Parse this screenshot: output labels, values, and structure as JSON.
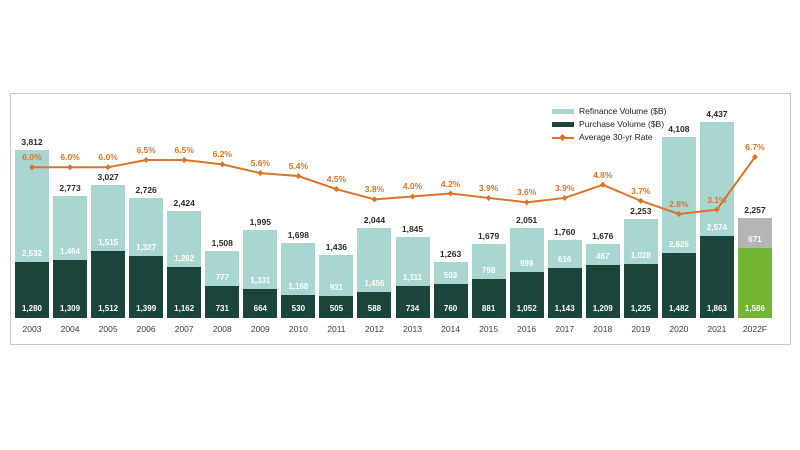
{
  "colors": {
    "refinance": "#a9d6d1",
    "purchase": "#1b453c",
    "rate_line": "#dd7327",
    "forecast_refinance": "#b5b5b5",
    "forecast_purchase": "#72b434",
    "total_label": "#2a2a2a",
    "year_label": "#3c3c3c",
    "box_border": "#c9c9c9"
  },
  "legend": {
    "items": [
      {
        "label": "Refinance Volume ($B)",
        "swatch": "refinance"
      },
      {
        "label": "Purchase Volume ($B)",
        "swatch": "purchase"
      },
      {
        "label": "Average 30-yr Rate",
        "swatch": "rate_line"
      }
    ]
  },
  "chart_data": {
    "type": "bar",
    "subtype": "stacked-bars-with-rate-line",
    "title": "",
    "xlabel": "",
    "ylabel": "",
    "grid": false,
    "legend_position": "top-right",
    "categories": [
      "2003",
      "2004",
      "2005",
      "2006",
      "2007",
      "2008",
      "2009",
      "2010",
      "2011",
      "2012",
      "2013",
      "2014",
      "2015",
      "2016",
      "2017",
      "2018",
      "2019",
      "2020",
      "2021",
      "2022F"
    ],
    "series": [
      {
        "name": "Refinance Volume ($B)",
        "values": [
          2532,
          1464,
          1515,
          1327,
          1262,
          777,
          1331,
          1168,
          931,
          1456,
          1111,
          503,
          798,
          999,
          616,
          467,
          1028,
          2625,
          2574,
          671
        ]
      },
      {
        "name": "Purchase Volume ($B)",
        "values": [
          1280,
          1309,
          1512,
          1399,
          1162,
          731,
          664,
          530,
          505,
          588,
          734,
          760,
          881,
          1052,
          1143,
          1209,
          1225,
          1482,
          1863,
          1586
        ]
      },
      {
        "name": "Average 30-yr Rate",
        "unit": "%",
        "values": [
          6.0,
          6.0,
          6.0,
          6.5,
          6.5,
          6.2,
          5.6,
          5.4,
          4.5,
          3.8,
          4.0,
          4.2,
          3.9,
          3.6,
          3.9,
          4.8,
          3.7,
          2.8,
          3.1,
          6.7
        ]
      }
    ],
    "totals": [
      3812,
      2773,
      3027,
      2726,
      2424,
      1508,
      1995,
      1698,
      1436,
      2044,
      1845,
      1263,
      1679,
      2051,
      1760,
      1676,
      2253,
      4108,
      4437,
      2257
    ],
    "forecast_index": 19,
    "ylim": [
      0,
      5100
    ],
    "rate_ylim_hint": [
      2.8,
      6.7
    ]
  }
}
